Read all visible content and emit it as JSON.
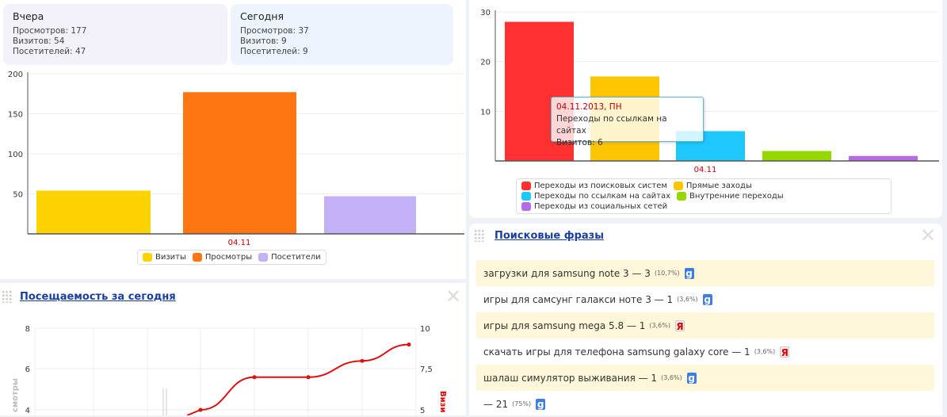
{
  "summary": {
    "yesterday": {
      "title": "Вчера",
      "views": "Просмотров: 177",
      "visits": "Визитов: 54",
      "visitors": "Посетителей: 47"
    },
    "today": {
      "title": "Сегодня",
      "views": "Просмотров: 37",
      "visits": "Визитов: 9",
      "visitors": "Посетителей: 9"
    }
  },
  "chart_data": [
    {
      "type": "bar",
      "categories": [
        "04.11"
      ],
      "series": [
        {
          "name": "Визиты",
          "values": [
            54
          ],
          "color": "#fcd200"
        },
        {
          "name": "Просмотры",
          "values": [
            177
          ],
          "color": "#fd7612"
        },
        {
          "name": "Посетители",
          "values": [
            47
          ],
          "color": "#c3b0f7"
        }
      ],
      "yticks": [
        50,
        100,
        150,
        200
      ],
      "ylim": [
        0,
        200
      ],
      "grid": true,
      "legend": "bottom"
    },
    {
      "type": "bar",
      "categories": [
        "04.11"
      ],
      "series": [
        {
          "name": "Переходы из поисковых систем",
          "values": [
            28
          ],
          "color": "#ff3030"
        },
        {
          "name": "Прямые заходы",
          "values": [
            17
          ],
          "color": "#ffc500"
        },
        {
          "name": "Переходы по ссылкам на сайтах",
          "values": [
            6
          ],
          "color": "#1ec8ff"
        },
        {
          "name": "Внутренние переходы",
          "values": [
            2
          ],
          "color": "#95d800"
        },
        {
          "name": "Переходы из социальных сетей",
          "values": [
            1
          ],
          "color": "#b86ae6"
        }
      ],
      "yticks": [
        10,
        20,
        30
      ],
      "ylim": [
        0,
        30
      ],
      "grid": true,
      "legend": "bottom",
      "tooltip": {
        "date": "04.11.2013, ПН",
        "series": "Переходы по ссылкам на сайтах",
        "value": "Визитов: 6"
      }
    },
    {
      "type": "line",
      "yticks_left": [
        "4",
        "6",
        "8"
      ],
      "yticks_right": [
        "5",
        "7,5",
        "10"
      ],
      "ylabel_left": "смотры",
      "ylabel_right": "Визи",
      "series": [
        {
          "name": "Визиты",
          "values": [
            5,
            7,
            7,
            8,
            9
          ],
          "color": "#e01010"
        }
      ]
    }
  ],
  "widgets": {
    "traffic_today": {
      "title": "Посещаемость за сегодня"
    },
    "search_phrases": {
      "title": "Поисковые фразы",
      "rows": [
        {
          "text": "загрузки для samsung note 3 — 3",
          "pct": "(10,7%)",
          "engine": "google-icon"
        },
        {
          "text": "игры для самсунг галакси ноте 3 — 1",
          "pct": "(3,6%)",
          "engine": "google-icon"
        },
        {
          "text": "игры для samsung mega 5.8 — 1",
          "pct": "(3,6%)",
          "engine": "yandex-icon"
        },
        {
          "text": "скачать игры для телефона samsung galaxy core — 1",
          "pct": "(3,6%)",
          "engine": "yandex-icon"
        },
        {
          "text": "шалаш симулятор выживания — 1",
          "pct": "(3,6%)",
          "engine": "google-icon"
        },
        {
          "text": "— 21",
          "pct": "(75%)",
          "engine": "google-icon"
        }
      ]
    }
  }
}
